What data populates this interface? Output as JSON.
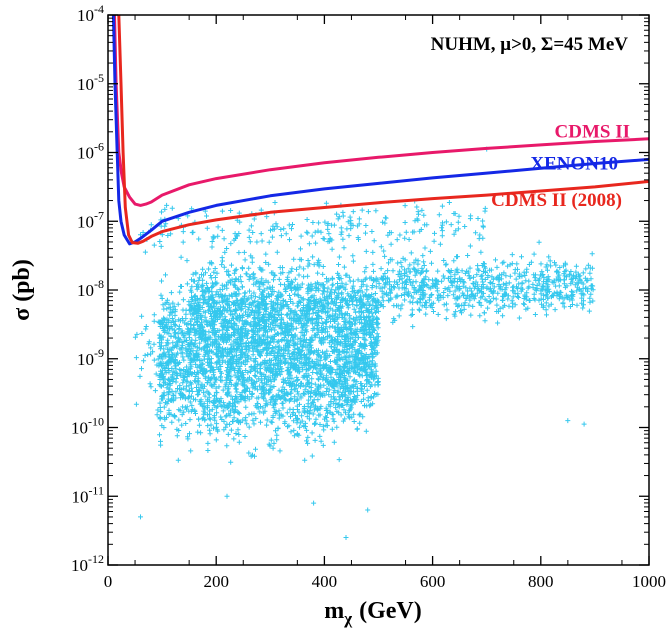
{
  "chart_data": {
    "type": "scatter",
    "title": "NUHM, μ>0, Σ=45 MeV",
    "xlabel": "m",
    "xlabel_sub": "χ",
    "xlabel_unit": "(GeV)",
    "ylabel": "σ (pb)",
    "xlim": [
      0,
      1000
    ],
    "ylim_log10": [
      -12,
      -4
    ],
    "xscale": "linear",
    "yscale": "log",
    "x_ticks": [
      "0",
      "200",
      "400",
      "600",
      "800",
      "1000"
    ],
    "y_ticks": [
      {
        "base": "10",
        "exp": "-4"
      },
      {
        "base": "10",
        "exp": "-5"
      },
      {
        "base": "10",
        "exp": "-6"
      },
      {
        "base": "10",
        "exp": "-7"
      },
      {
        "base": "10",
        "exp": "-8"
      },
      {
        "base": "10",
        "exp": "-9"
      },
      {
        "base": "10",
        "exp": "-10"
      },
      {
        "base": "10",
        "exp": "-11"
      },
      {
        "base": "10",
        "exp": "-12"
      }
    ],
    "scatter_color": "#35c8ee",
    "scatter_marker": "+",
    "scatter_regions": [
      {
        "x_range": [
          95,
          500
        ],
        "log10_y_center": -8.9,
        "log10_y_spread": 0.75,
        "count": 2300
      },
      {
        "x_range": [
          150,
          500
        ],
        "log10_y_center": -8.2,
        "log10_y_spread": 0.5,
        "count": 900
      },
      {
        "x_range": [
          500,
          900
        ],
        "log10_y_center": -7.95,
        "log10_y_spread": 0.35,
        "count": 700
      },
      {
        "x_range": [
          95,
          470
        ],
        "log10_y_center": -9.6,
        "log10_y_spread": 0.6,
        "count": 500
      },
      {
        "x_range": [
          60,
          700
        ],
        "log10_y_center": -7.1,
        "log10_y_spread": 0.3,
        "count": 220
      },
      {
        "x_range": [
          50,
          110
        ],
        "log10_y_center": -9.0,
        "log10_y_spread": 0.6,
        "count": 45
      }
    ],
    "scatter_outliers": [
      {
        "x": 60,
        "y_log10": -11.3
      },
      {
        "x": 440,
        "y_log10": -11.6
      },
      {
        "x": 700,
        "y_log10": -5.95
      },
      {
        "x": 850,
        "y_log10": -9.9
      },
      {
        "x": 880,
        "y_log10": -9.95
      },
      {
        "x": 220,
        "y_log10": -11.0
      },
      {
        "x": 380,
        "y_log10": -11.1
      },
      {
        "x": 480,
        "y_log10": -11.2
      }
    ],
    "series": [
      {
        "name": "CDMS II",
        "color": "#e8196a",
        "points": [
          [
            12,
            -4.0
          ],
          [
            15,
            -5.0
          ],
          [
            20,
            -6.0
          ],
          [
            25,
            -6.3
          ],
          [
            30,
            -6.5
          ],
          [
            40,
            -6.65
          ],
          [
            50,
            -6.75
          ],
          [
            60,
            -6.77
          ],
          [
            70,
            -6.75
          ],
          [
            80,
            -6.72
          ],
          [
            100,
            -6.62
          ],
          [
            150,
            -6.47
          ],
          [
            200,
            -6.38
          ],
          [
            300,
            -6.25
          ],
          [
            400,
            -6.15
          ],
          [
            500,
            -6.07
          ],
          [
            600,
            -6.0
          ],
          [
            700,
            -5.94
          ],
          [
            800,
            -5.89
          ],
          [
            900,
            -5.84
          ],
          [
            1000,
            -5.8
          ]
        ]
      },
      {
        "name": "XENON10",
        "color": "#1428e6",
        "points": [
          [
            10,
            -4.0
          ],
          [
            13,
            -5.0
          ],
          [
            17,
            -6.0
          ],
          [
            20,
            -6.7
          ],
          [
            24,
            -7.0
          ],
          [
            30,
            -7.2
          ],
          [
            40,
            -7.33
          ],
          [
            50,
            -7.3
          ],
          [
            60,
            -7.25
          ],
          [
            80,
            -7.13
          ],
          [
            100,
            -7.0
          ],
          [
            150,
            -6.87
          ],
          [
            200,
            -6.77
          ],
          [
            300,
            -6.63
          ],
          [
            400,
            -6.53
          ],
          [
            500,
            -6.45
          ],
          [
            600,
            -6.37
          ],
          [
            700,
            -6.3
          ],
          [
            800,
            -6.23
          ],
          [
            900,
            -6.16
          ],
          [
            1000,
            -6.1
          ]
        ]
      },
      {
        "name": "CDMS II (2008)",
        "color": "#e8271e",
        "points": [
          [
            20,
            -4.0
          ],
          [
            24,
            -5.0
          ],
          [
            28,
            -6.0
          ],
          [
            32,
            -6.8
          ],
          [
            38,
            -7.2
          ],
          [
            45,
            -7.31
          ],
          [
            55,
            -7.32
          ],
          [
            65,
            -7.29
          ],
          [
            80,
            -7.22
          ],
          [
            100,
            -7.15
          ],
          [
            150,
            -7.05
          ],
          [
            200,
            -6.98
          ],
          [
            300,
            -6.87
          ],
          [
            400,
            -6.8
          ],
          [
            500,
            -6.73
          ],
          [
            600,
            -6.67
          ],
          [
            700,
            -6.62
          ],
          [
            800,
            -6.56
          ],
          [
            900,
            -6.5
          ],
          [
            1000,
            -6.42
          ]
        ]
      }
    ],
    "legend": "inline labels next to curves"
  }
}
